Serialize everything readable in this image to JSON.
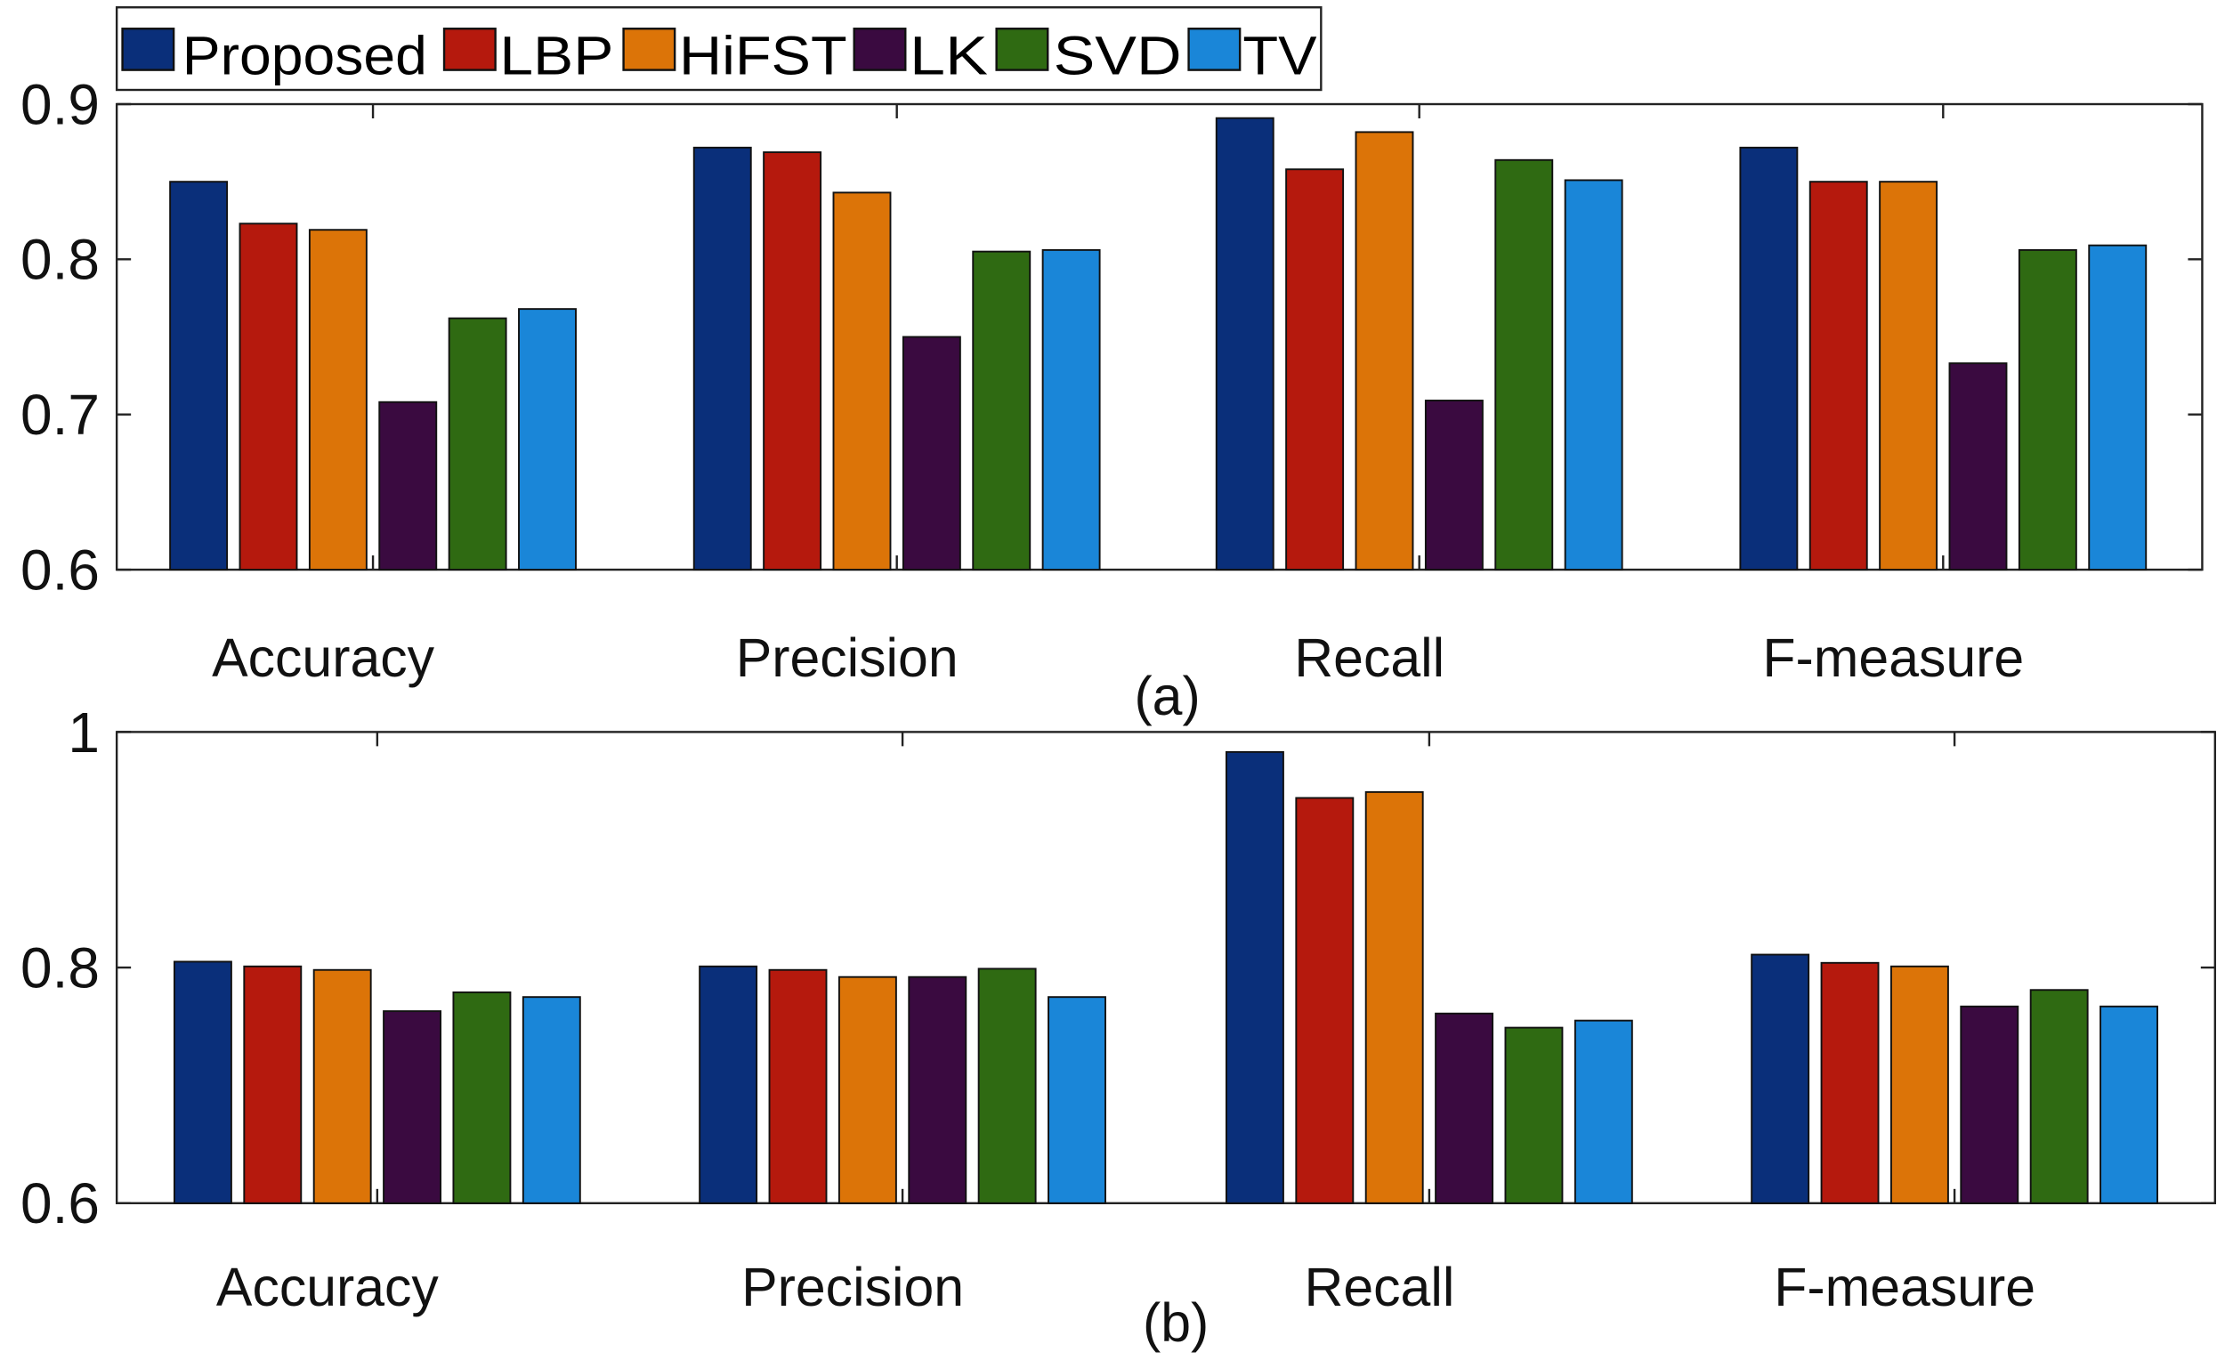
{
  "chart_data": [
    {
      "type": "bar",
      "panel_label": "(a)",
      "categories": [
        "Accuracy",
        "Precision",
        "Recall",
        "F-measure"
      ],
      "ylim": [
        0.6,
        0.9
      ],
      "yticks": [
        "0.6",
        "0.7",
        "0.8",
        "0.9"
      ],
      "ytick_values": [
        0.6,
        0.7,
        0.8,
        0.9
      ],
      "grid": false,
      "series": [
        {
          "name": "Proposed",
          "color": "#0a2f7a",
          "values": [
            0.85,
            0.872,
            0.891,
            0.872
          ]
        },
        {
          "name": "LBP",
          "color": "#b5190d",
          "values": [
            0.823,
            0.869,
            0.858,
            0.85
          ]
        },
        {
          "name": "HiFST",
          "color": "#dc7408",
          "values": [
            0.819,
            0.843,
            0.882,
            0.85
          ]
        },
        {
          "name": "LK",
          "color": "#3a0a40",
          "values": [
            0.708,
            0.75,
            0.709,
            0.733
          ]
        },
        {
          "name": "SVD",
          "color": "#2f6a12",
          "values": [
            0.762,
            0.805,
            0.864,
            0.806
          ]
        },
        {
          "name": "TV",
          "color": "#1a86d8",
          "values": [
            0.768,
            0.806,
            0.851,
            0.809
          ]
        }
      ]
    },
    {
      "type": "bar",
      "panel_label": "(b)",
      "categories": [
        "Accuracy",
        "Precision",
        "Recall",
        "F-measure"
      ],
      "ylim": [
        0.6,
        1.0
      ],
      "yticks": [
        "0.6",
        "0.8",
        "1"
      ],
      "ytick_values": [
        0.6,
        0.8,
        1.0
      ],
      "grid": false,
      "series": [
        {
          "name": "Proposed",
          "color": "#0a2f7a",
          "values": [
            0.805,
            0.801,
            0.983,
            0.811
          ]
        },
        {
          "name": "LBP",
          "color": "#b5190d",
          "values": [
            0.801,
            0.798,
            0.944,
            0.804
          ]
        },
        {
          "name": "HiFST",
          "color": "#dc7408",
          "values": [
            0.798,
            0.792,
            0.949,
            0.801
          ]
        },
        {
          "name": "LK",
          "color": "#3a0a40",
          "values": [
            0.763,
            0.792,
            0.761,
            0.767
          ]
        },
        {
          "name": "SVD",
          "color": "#2f6a12",
          "values": [
            0.779,
            0.799,
            0.749,
            0.781
          ]
        },
        {
          "name": "TV",
          "color": "#1a86d8",
          "values": [
            0.775,
            0.775,
            0.755,
            0.767
          ]
        }
      ]
    }
  ],
  "legend": {
    "placement": "top-left",
    "entries": [
      "Proposed",
      "LBP",
      "HiFST",
      "LK",
      "SVD",
      "TV"
    ]
  }
}
